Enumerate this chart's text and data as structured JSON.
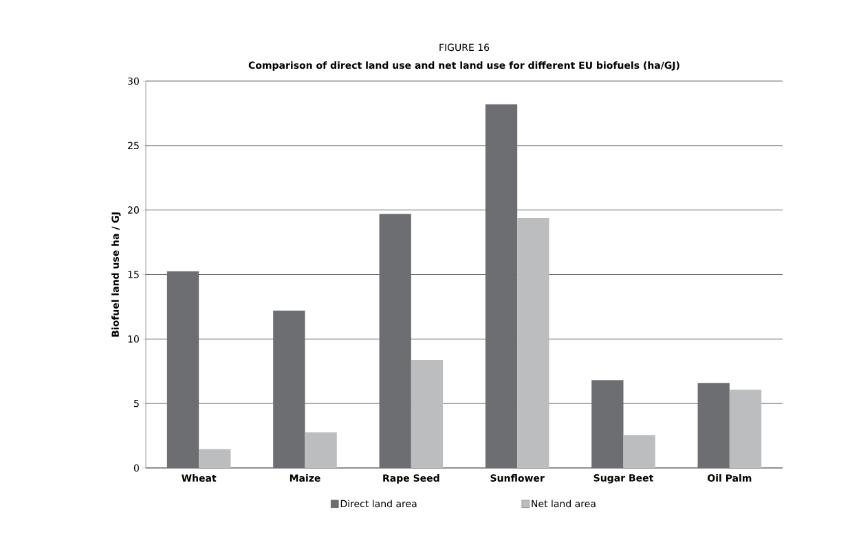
{
  "chart_data": {
    "type": "bar",
    "title": "FIGURE 16",
    "subtitle": "Comparison of direct land use and net land use for different EU biofuels (ha/GJ)",
    "ylabel": "Biofuel land use ha / GJ",
    "categories": [
      "Wheat",
      "Maize",
      "Rape Seed",
      "Sunflower",
      "Sugar Beet",
      "Oil Palm"
    ],
    "series": [
      {
        "name": "Direct land area",
        "color": "#6d6e71",
        "values": [
          15.25,
          12.2,
          19.7,
          28.2,
          6.8,
          6.6
        ]
      },
      {
        "name": "Net land area",
        "color": "#bcbdbf",
        "values": [
          1.47,
          2.76,
          8.36,
          19.4,
          2.55,
          6.07
        ]
      }
    ],
    "ylim": [
      0,
      30
    ],
    "yticks": [
      0,
      5,
      10,
      15,
      20,
      25,
      30
    ],
    "grid": "y",
    "legend": "bottom"
  }
}
